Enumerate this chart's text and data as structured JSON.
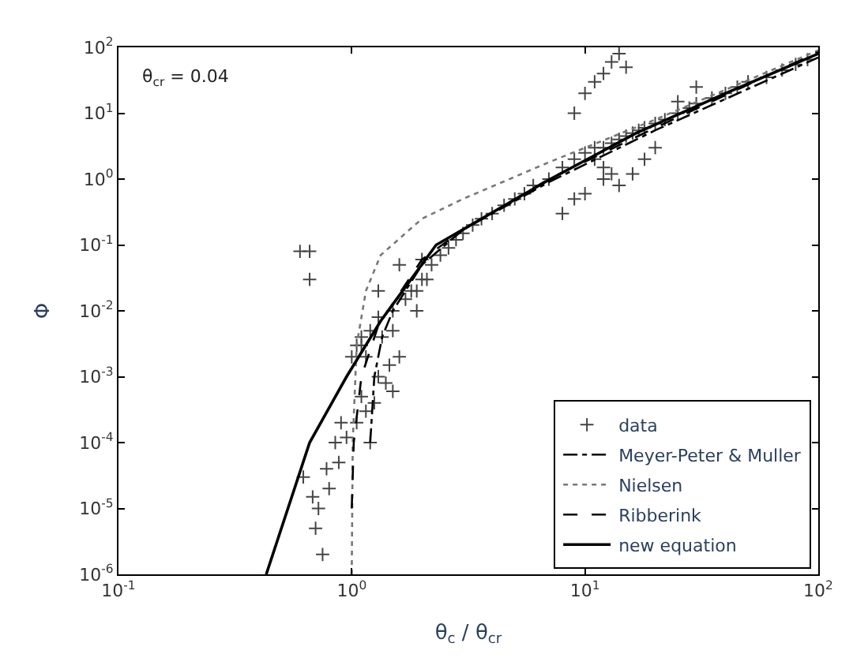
{
  "chart_data": {
    "type": "scatter",
    "xlabel": "θ$_{c}$ / θ$_{cr}$",
    "ylabel": "Φ",
    "log": "xy",
    "legend": "bottom right",
    "annotations": [
      "θ$_{cr}$ = 0.04"
    ],
    "xlim": [
      0.1,
      100
    ],
    "ylim": [
      1e-06,
      100
    ],
    "xticks": [
      {
        "value": 0.1,
        "label": "10$^{-1}$"
      },
      {
        "value": 1,
        "label": "10$^{0}$"
      },
      {
        "value": 10,
        "label": "10$^{1}$"
      },
      {
        "value": 100,
        "label": "10$^{2}$"
      }
    ],
    "yticks": [
      {
        "value": 1e-06,
        "label": "10$^{-6}$"
      },
      {
        "value": 1e-05,
        "label": "10$^{-5}$"
      },
      {
        "value": 0.0001,
        "label": "10$^{-4}$"
      },
      {
        "value": 0.001,
        "label": "10$^{-3}$"
      },
      {
        "value": 0.01,
        "label": "10$^{-2}$"
      },
      {
        "value": 0.1,
        "label": "10$^{-1}$"
      },
      {
        "value": 1,
        "label": "10$^{0}$"
      },
      {
        "value": 10,
        "label": "10$^{1}$"
      },
      {
        "value": 100,
        "label": "10$^{2}$"
      }
    ],
    "series": [
      {
        "name": "data",
        "marker": "cross",
        "color": "#444444",
        "x": [
          0.6,
          0.66,
          0.66,
          0.62,
          0.7,
          0.75,
          0.68,
          0.72,
          0.8,
          0.78,
          0.85,
          0.9,
          0.88,
          0.95,
          1.05,
          1.1,
          1.15,
          1.2,
          1.3,
          1.25,
          1.4,
          1.5,
          1.6,
          1.45,
          1.1,
          1.2,
          1.3,
          1.5,
          1.7,
          1.8,
          2.0,
          2.2,
          1.9,
          2.4,
          2.6,
          2.8,
          3.0,
          3.3,
          3.6,
          4.0,
          4.5,
          5.0,
          5.5,
          6.0,
          7.0,
          8.0,
          9.0,
          10,
          11,
          12,
          13,
          14,
          15,
          16,
          17,
          18,
          20,
          22,
          25,
          28,
          30,
          35,
          40,
          45,
          50,
          60,
          70,
          80,
          90,
          10,
          11,
          12,
          13,
          14,
          15,
          9,
          10,
          12,
          8,
          9,
          16,
          18,
          20,
          25,
          30,
          14,
          11,
          12,
          13,
          1.3,
          1.6,
          2.0,
          1.9,
          2.1,
          1.5,
          1.35,
          1.0,
          1.05,
          1.1,
          1.15
        ],
        "values": [
          0.08,
          0.08,
          0.03,
          3e-05,
          5e-06,
          2e-06,
          1.5e-05,
          1e-05,
          2e-05,
          4e-05,
          0.0001,
          0.0002,
          5e-05,
          0.00012,
          0.0002,
          0.0005,
          0.0003,
          0.0001,
          0.001,
          0.0004,
          0.0008,
          0.0006,
          0.002,
          0.0015,
          0.003,
          0.005,
          0.008,
          0.01,
          0.015,
          0.02,
          0.03,
          0.05,
          0.02,
          0.07,
          0.09,
          0.12,
          0.15,
          0.2,
          0.25,
          0.3,
          0.4,
          0.5,
          0.6,
          0.8,
          1.0,
          1.5,
          2.0,
          2.5,
          3.0,
          3.0,
          3.5,
          4.0,
          4.5,
          5.0,
          5.5,
          6.0,
          7.0,
          8.0,
          10,
          12,
          14,
          17,
          20,
          25,
          30,
          35,
          45,
          55,
          65,
          20,
          30,
          40,
          60,
          80,
          50,
          0.5,
          0.6,
          1.0,
          0.3,
          10,
          1.2,
          2.0,
          3.0,
          15,
          25,
          0.8,
          2.0,
          1.5,
          1.2,
          0.02,
          0.05,
          0.06,
          0.01,
          0.03,
          0.005,
          0.004,
          0.002,
          0.003,
          0.004,
          0.002
        ]
      },
      {
        "name": "Meyer-Peter & Muller",
        "type": "line",
        "line_style": "dashdot",
        "color": "#000000",
        "x": [
          1.2,
          1.25,
          1.35,
          1.5,
          2,
          3,
          7,
          20,
          100
        ],
        "values": [
          0.0001,
          0.001,
          0.004,
          0.01,
          0.05,
          0.17,
          0.9,
          5.5,
          70
        ]
      },
      {
        "name": "Nielsen",
        "type": "line",
        "line_style": "dotted",
        "color": "#777777",
        "x": [
          1.0,
          1.01,
          1.05,
          1.15,
          1.33,
          2,
          3,
          7,
          20,
          100
        ],
        "values": [
          1e-06,
          0.0001,
          0.003,
          0.02,
          0.07,
          0.25,
          0.5,
          1.8,
          8,
          90
        ]
      },
      {
        "name": "Ribberink",
        "type": "line",
        "line_style": "dashed",
        "color": "#000000",
        "x": [
          1.0,
          1.02,
          1.1,
          1.3,
          2,
          3,
          7,
          20,
          100
        ],
        "values": [
          1e-05,
          0.0001,
          0.001,
          0.006,
          0.06,
          0.17,
          1.0,
          6,
          85
        ]
      },
      {
        "name": "new equation",
        "type": "line",
        "line_style": "solid",
        "color": "#000000",
        "x": [
          0.43,
          0.66,
          0.95,
          1.33,
          2.3,
          7.1,
          16.6,
          40,
          100
        ],
        "values": [
          1e-06,
          0.0001,
          0.001,
          0.007,
          0.1,
          1,
          5,
          20,
          80
        ]
      }
    ]
  }
}
